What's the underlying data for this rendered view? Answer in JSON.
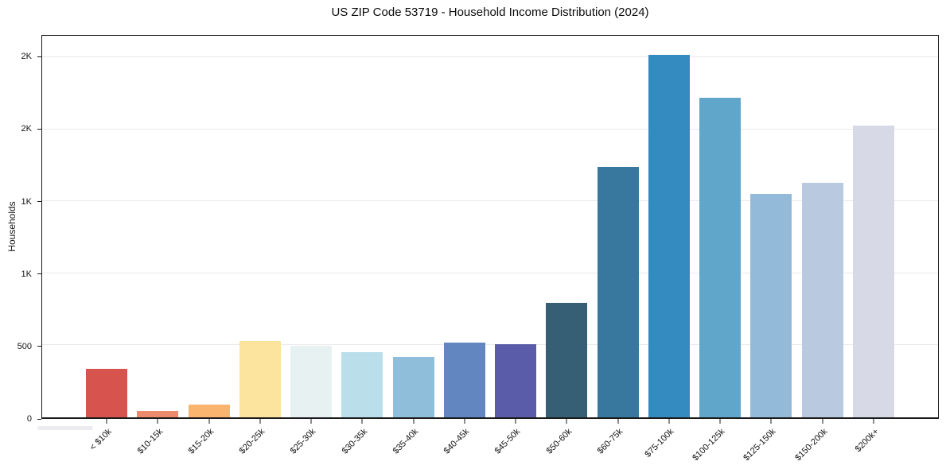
{
  "chart_data": {
    "type": "bar",
    "title": "US ZIP Code 53719 - Household Income Distribution (2024)",
    "xlabel": "",
    "ylabel": "Households",
    "categories": [
      "< $10k",
      "$10-15k",
      "$15-20k",
      "$20-25k",
      "$25-30k",
      "$30-35k",
      "$35-40k",
      "$40-45k",
      "$45-50k",
      "$50-60k",
      "$60-75k",
      "$75-100k",
      "$100-125k",
      "$125-150k",
      "$150-200k",
      "$200k+"
    ],
    "values": [
      335,
      45,
      90,
      530,
      495,
      455,
      420,
      520,
      510,
      795,
      1740,
      2515,
      2220,
      1550,
      1630,
      2025
    ],
    "bar_colors": [
      "#d6534e",
      "#ec8a6d",
      "#f9b46f",
      "#fce49e",
      "#e7f1f1",
      "#badfeb",
      "#8fbedb",
      "#6286bf",
      "#5a5ca9",
      "#365f75",
      "#38789f",
      "#348bc0",
      "#60a6ca",
      "#93bad8",
      "#b9c9df",
      "#d7d9e6"
    ],
    "ylim": [
      0,
      2650
    ],
    "yticks": {
      "values": [
        0,
        500,
        1000,
        1500,
        2000,
        2500
      ],
      "labels": [
        "0",
        "500",
        "1K",
        "1K",
        "2K",
        "2K"
      ]
    },
    "grid": "horizontal",
    "gridline_color": "#e9e9ec",
    "background_color": "#ffffff",
    "legend": false
  }
}
